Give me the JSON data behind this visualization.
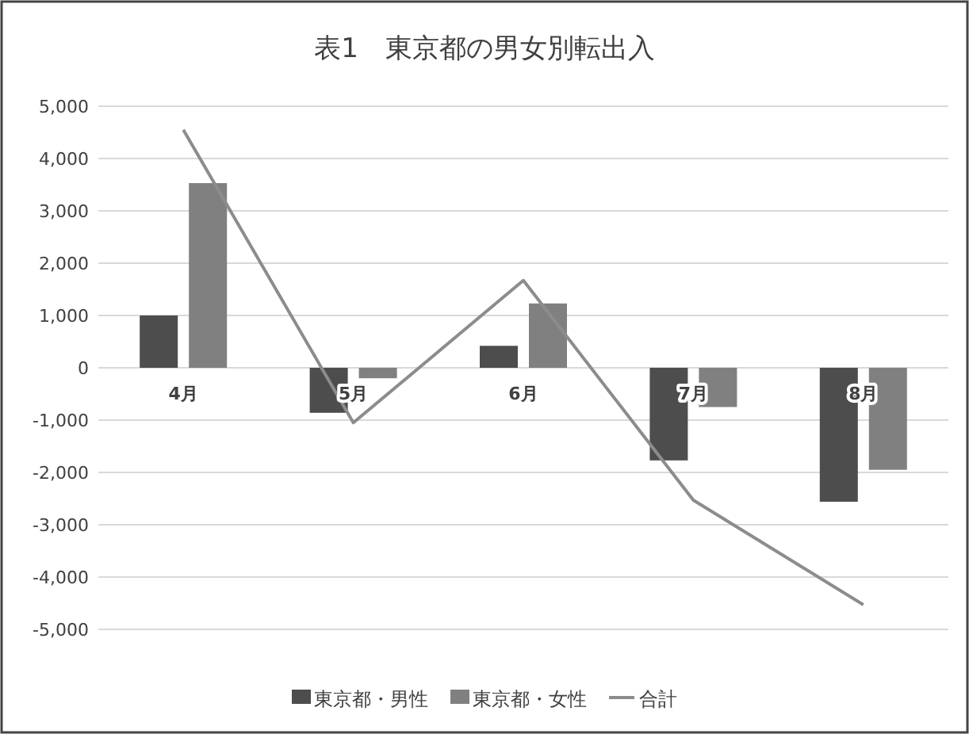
{
  "chart_data": {
    "type": "bar",
    "title": "表1　東京都の男女別転出入",
    "categories": [
      "4月",
      "5月",
      "6月",
      "7月",
      "8月"
    ],
    "series": [
      {
        "name": "東京都・男性",
        "color": "#4d4d4d",
        "values": [
          1000,
          -860,
          420,
          -1770,
          -2560
        ]
      },
      {
        "name": "東京都・女性",
        "color": "#808080",
        "values": [
          3530,
          -200,
          1230,
          -750,
          -1950
        ]
      },
      {
        "name": "合計",
        "type": "line",
        "color": "#8c8c8c",
        "values": [
          4550,
          -1050,
          1670,
          -2530,
          -4530
        ]
      }
    ],
    "ylim": [
      -5000,
      5000
    ],
    "yticks": [
      {
        "value": -5000,
        "label": "-5,000"
      },
      {
        "value": -4000,
        "label": "-4,000"
      },
      {
        "value": -3000,
        "label": "-3,000"
      },
      {
        "value": -2000,
        "label": "-2,000"
      },
      {
        "value": -1000,
        "label": "-1,000"
      },
      0,
      {
        "value": 1000,
        "label": "1,000"
      },
      {
        "value": 2000,
        "label": "2,000"
      },
      {
        "value": 3000,
        "label": "3,000"
      },
      {
        "value": 4000,
        "label": "4,000"
      },
      {
        "value": 5000,
        "label": "5,000"
      }
    ],
    "grid": "y",
    "legend": "bottom",
    "marker": "none"
  }
}
